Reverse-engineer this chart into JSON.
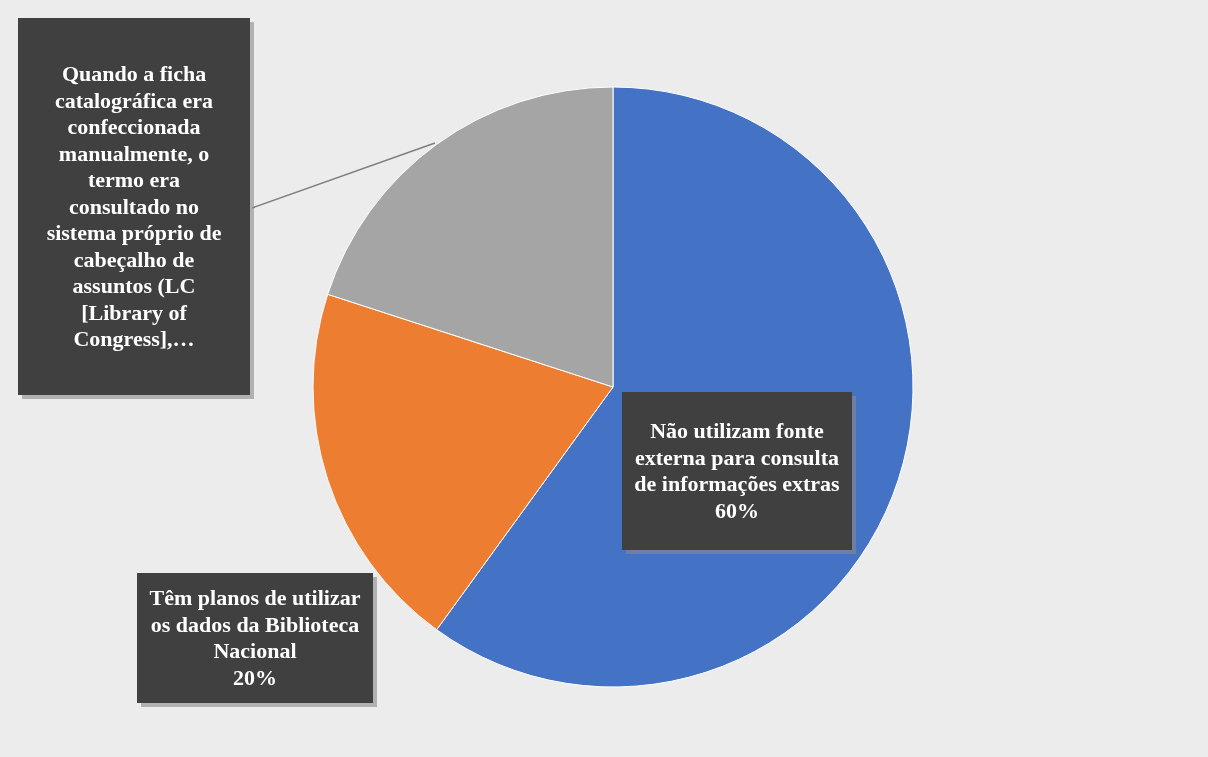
{
  "chart_data": {
    "type": "pie",
    "categories": [
      "Não utilizam fonte externa para consulta de informações extras",
      "Têm planos de utilizar os dados da Biblioteca Nacional",
      "Quando a ficha catalográfica era confeccionada manualmente, o termo era consultado no sistema próprio de cabeçalho de assuntos (LC [Library of Congress],…"
    ],
    "values": [
      60,
      20,
      20
    ],
    "colors": [
      "#4472c4",
      "#ed7d31",
      "#a5a5a5"
    ],
    "value_labels": [
      "60%",
      "20%",
      null
    ]
  }
}
